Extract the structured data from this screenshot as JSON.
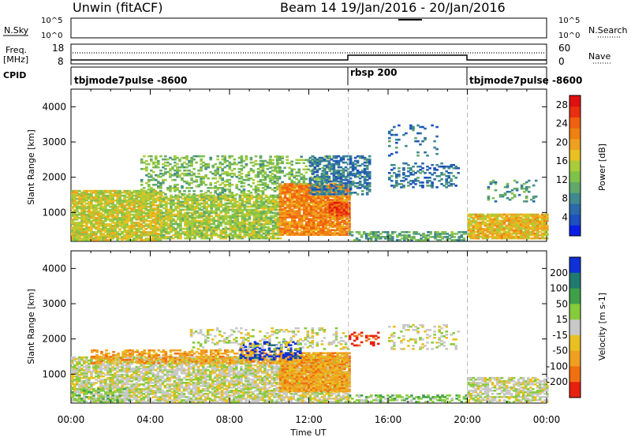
{
  "header": {
    "station": "Unwin (fitACF)",
    "beam_date": "Beam 14  19/Jan/2016 - 20/Jan/2016"
  },
  "left_labels": {
    "nsky": "N.Sky",
    "freq_a": "Freq.",
    "freq_b": "[MHz]",
    "cpid": "CPID"
  },
  "right_labels": {
    "nsearch": "N.Search",
    "nave": "Nave"
  },
  "noise_ticks": {
    "top": "10^5",
    "bottom": "10^0"
  },
  "freq_ticks": [
    "18",
    "8"
  ],
  "nave_ticks": [
    "60",
    "0"
  ],
  "cpid_segments": [
    {
      "label": "tbjmode7pulse -8600",
      "start_hour": 0
    },
    {
      "label": "rbsp 200",
      "start_hour": 14
    },
    {
      "label": "tbjmode7pulse -8600",
      "start_hour": 20
    }
  ],
  "chart_data": [
    {
      "type": "heatmap",
      "quantity": "Power",
      "xlabel": "Time UT",
      "ylabel": "Slant Range [km]",
      "x_ticks": [
        "00:00",
        "04:00",
        "08:00",
        "12:00",
        "16:00",
        "20:00",
        "00:00"
      ],
      "x_range_hours": [
        0,
        24
      ],
      "y_ticks": [
        1000,
        2000,
        3000,
        4000
      ],
      "ylim": [
        180,
        4500
      ],
      "colorbar": {
        "label": "Power [dB]",
        "ticks": [
          4,
          8,
          12,
          16,
          20,
          24,
          28
        ],
        "range": [
          0,
          30
        ],
        "colors": [
          "#0a1fe6",
          "#1c4fbf",
          "#2a6aa8",
          "#3f8a8e",
          "#62a86a",
          "#7fc24a",
          "#a8cc3a",
          "#e8c020",
          "#f0a020",
          "#f08010",
          "#f06010",
          "#e83010",
          "#e01010"
        ]
      },
      "mode_change_hours": [
        14,
        20
      ],
      "regions": [
        {
          "t": [
            0.0,
            4.5
          ],
          "r": [
            200,
            1600
          ],
          "p": 16,
          "d": 0.85
        },
        {
          "t": [
            4.5,
            10.5
          ],
          "r": [
            250,
            1500
          ],
          "p": 14,
          "d": 0.8
        },
        {
          "t": [
            3.5,
            10.5
          ],
          "r": [
            1500,
            2600
          ],
          "p": 12,
          "d": 0.35
        },
        {
          "t": [
            10.5,
            14.0
          ],
          "r": [
            350,
            1800
          ],
          "p": 22,
          "d": 0.9
        },
        {
          "t": [
            13.0,
            14.0
          ],
          "r": [
            900,
            1300
          ],
          "p": 26,
          "d": 0.9
        },
        {
          "t": [
            10.0,
            13.0
          ],
          "r": [
            1800,
            2600
          ],
          "p": 12,
          "d": 0.3
        },
        {
          "t": [
            12.0,
            15.0
          ],
          "r": [
            1500,
            2600
          ],
          "p": 6,
          "d": 0.55
        },
        {
          "t": [
            14.0,
            20.0
          ],
          "r": [
            200,
            450
          ],
          "p": 10,
          "d": 0.55
        },
        {
          "t": [
            16.0,
            19.5
          ],
          "r": [
            1700,
            2400
          ],
          "p": 6,
          "d": 0.3
        },
        {
          "t": [
            16.0,
            18.5
          ],
          "r": [
            2600,
            3500
          ],
          "p": 6,
          "d": 0.15
        },
        {
          "t": [
            20.0,
            24.0
          ],
          "r": [
            250,
            950
          ],
          "p": 18,
          "d": 0.9
        },
        {
          "t": [
            21.0,
            23.5
          ],
          "r": [
            1300,
            1900
          ],
          "p": 9,
          "d": 0.2
        }
      ]
    },
    {
      "type": "heatmap",
      "quantity": "Velocity",
      "xlabel": "Time UT",
      "ylabel": "Slant Range [km]",
      "x_ticks": [
        "00:00",
        "04:00",
        "08:00",
        "12:00",
        "16:00",
        "20:00",
        "00:00"
      ],
      "x_range_hours": [
        0,
        24
      ],
      "y_ticks": [
        1000,
        2000,
        3000,
        4000
      ],
      "ylim": [
        180,
        4500
      ],
      "colorbar": {
        "label": "Velocity [m s-1]",
        "ticks": [
          "200",
          "100",
          "50",
          "15",
          "-15",
          "-50",
          "-100",
          "-200"
        ],
        "colors": [
          "#1030d8",
          "#207a70",
          "#3fa04a",
          "#86cc3a",
          "#c8c8c8",
          "#e8c020",
          "#f0a020",
          "#f07010",
          "#e82010"
        ]
      },
      "mode_change_hours": [
        14,
        20
      ],
      "regions": [
        {
          "t": [
            0.0,
            14.0
          ],
          "r": [
            200,
            1500
          ],
          "v": "gray",
          "d": 0.75
        },
        {
          "t": [
            0.0,
            3.0
          ],
          "r": [
            200,
            600
          ],
          "v": "green",
          "d": 0.4
        },
        {
          "t": [
            1.0,
            10.5
          ],
          "r": [
            1300,
            1700
          ],
          "v": "orange",
          "d": 0.5
        },
        {
          "t": [
            10.5,
            14.0
          ],
          "r": [
            500,
            1600
          ],
          "v": "orange",
          "d": 0.85
        },
        {
          "t": [
            8.5,
            11.5
          ],
          "r": [
            1400,
            1900
          ],
          "v": "blue",
          "d": 0.35
        },
        {
          "t": [
            6.0,
            14.0
          ],
          "r": [
            1700,
            2300
          ],
          "v": "gray",
          "d": 0.25
        },
        {
          "t": [
            14.0,
            15.5
          ],
          "r": [
            1800,
            2200
          ],
          "v": "red",
          "d": 0.3
        },
        {
          "t": [
            14.0,
            20.0
          ],
          "r": [
            200,
            400
          ],
          "v": "green",
          "d": 0.45
        },
        {
          "t": [
            16.0,
            19.5
          ],
          "r": [
            1700,
            2400
          ],
          "v": "gray",
          "d": 0.2
        },
        {
          "t": [
            20.0,
            24.0
          ],
          "r": [
            200,
            900
          ],
          "v": "gray",
          "d": 0.65
        }
      ]
    }
  ]
}
